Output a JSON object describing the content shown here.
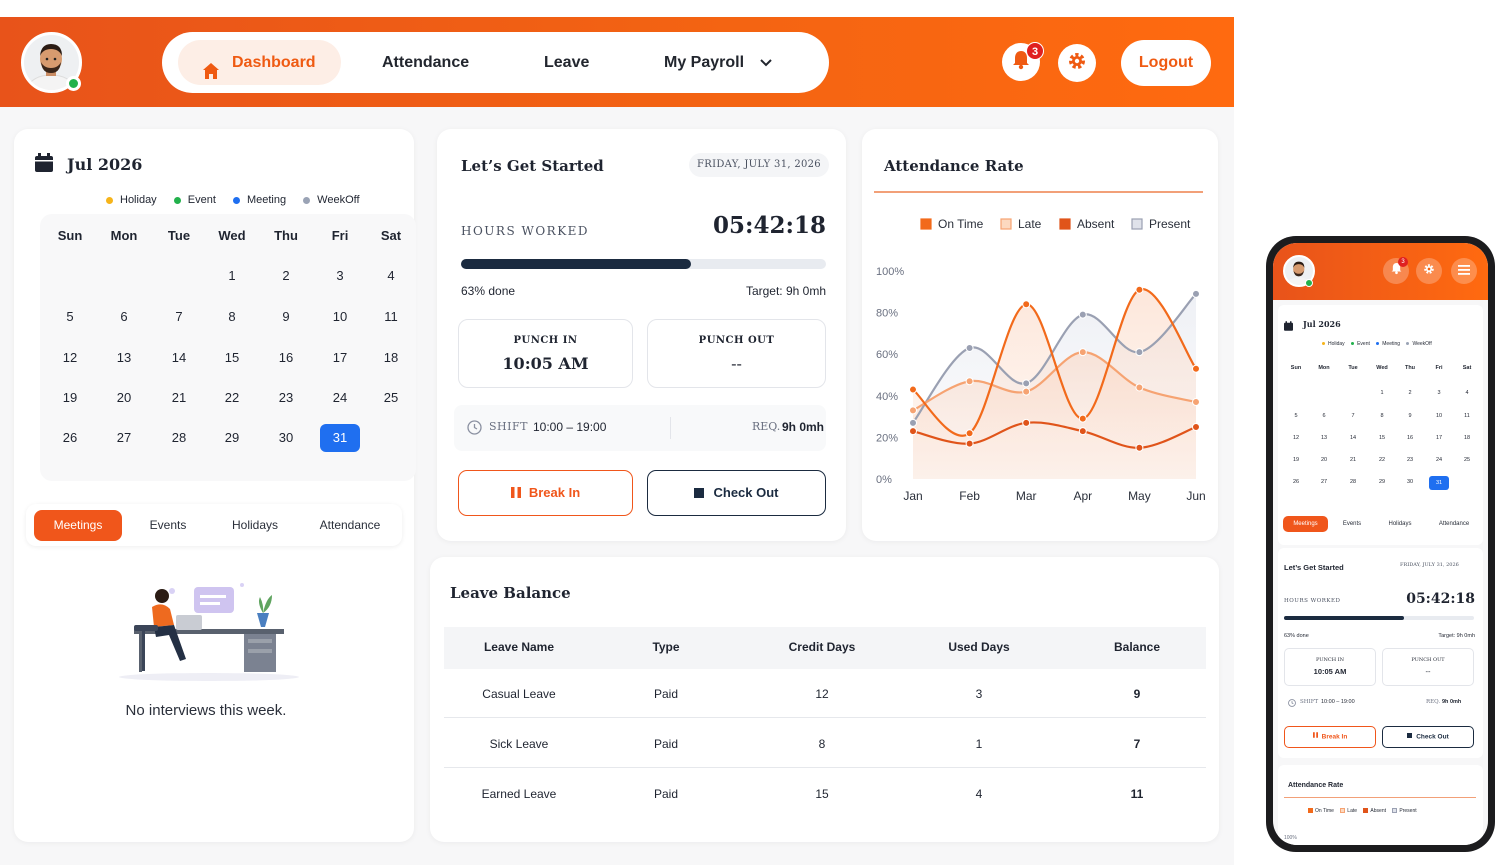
{
  "header": {
    "nav": {
      "dashboard": "Dashboard",
      "attendance": "Attendance",
      "leave": "Leave",
      "payroll": "My Payroll"
    },
    "notification_count": "3",
    "logout": "Logout"
  },
  "calendar": {
    "title": "Jul 2026",
    "legend": [
      "Holiday",
      "Event",
      "Meeting",
      "WeekOff"
    ],
    "legend_colors": [
      "#f6b41a",
      "#22b14c",
      "#1f6ff0",
      "#8a94a6"
    ],
    "weekdays": [
      "Sun",
      "Mon",
      "Tue",
      "Wed",
      "Thu",
      "Fri",
      "Sat"
    ],
    "weeks": [
      [
        "",
        "",
        "",
        "1",
        "2",
        "3",
        "4"
      ],
      [
        "5",
        "6",
        "7",
        "8",
        "9",
        "10",
        "11"
      ],
      [
        "12",
        "13",
        "14",
        "15",
        "16",
        "17",
        "18"
      ],
      [
        "19",
        "20",
        "21",
        "22",
        "23",
        "24",
        "25"
      ],
      [
        "26",
        "27",
        "28",
        "29",
        "30",
        "31",
        ""
      ]
    ],
    "selected": "31"
  },
  "tabs": [
    "Meetings",
    "Events",
    "Holidays",
    "Attendance"
  ],
  "empty_message": "No interviews this week.",
  "get_started": {
    "title": "Let’s Get Started",
    "date": "FRIDAY, JULY 31, 2026",
    "hours_label": "HOURS WORKED",
    "hours_value": "05:42:18",
    "progress": 0.63,
    "progress_text": "63% done",
    "target_text": "Target: 9h 0mh",
    "punch_in_label": "PUNCH IN",
    "punch_in_value": "10:05 AM",
    "punch_out_label": "PUNCH OUT",
    "punch_out_value": "--",
    "shift_label": "SHIFT",
    "shift_value": "10:00 – 19:00",
    "req_label": "REQ.",
    "req_value": "9h 0mh",
    "break_in": "Break In",
    "check_out": "Check Out"
  },
  "attendance_rate": {
    "title": "Attendance Rate"
  },
  "chart_data": {
    "type": "line",
    "categories": [
      "Jan",
      "Feb",
      "Mar",
      "Apr",
      "May",
      "Jun"
    ],
    "ylim": [
      0,
      100
    ],
    "yticks": [
      "100%",
      "80%",
      "60%",
      "40%",
      "20%",
      "0%"
    ],
    "series": [
      {
        "name": "On Time",
        "color": "#f26a1b",
        "values": [
          43,
          22,
          84,
          29,
          91,
          53
        ]
      },
      {
        "name": "Late",
        "color": "#f6a372",
        "values": [
          33,
          47,
          42,
          61,
          44,
          37
        ]
      },
      {
        "name": "Absent",
        "color": "#e0541a",
        "values": [
          23,
          17,
          27,
          23,
          15,
          25
        ]
      },
      {
        "name": "Present",
        "color": "#9aa0b2",
        "values": [
          27,
          63,
          46,
          79,
          61,
          89
        ]
      }
    ]
  },
  "leave_balance": {
    "title": "Leave Balance",
    "columns": [
      "Leave Name",
      "Type",
      "Credit Days",
      "Used Days",
      "Balance"
    ],
    "rows": [
      [
        "Casual Leave",
        "Paid",
        "12",
        "3",
        "9"
      ],
      [
        "Sick Leave",
        "Paid",
        "8",
        "1",
        "7"
      ],
      [
        "Earned Leave",
        "Paid",
        "15",
        "4",
        "11"
      ]
    ]
  },
  "mobile": {
    "notification_count": "3",
    "calendar_title": "Jul 2026",
    "legend": [
      "Holiday",
      "Event",
      "Meeting",
      "WeekOff"
    ],
    "tabs": [
      "Meetings",
      "Events",
      "Holidays",
      "Attendance"
    ],
    "get_started_title": "Let’s Get Started",
    "date": "FRIDAY, JULY 31, 2026",
    "hours_label": "HOURS WORKED",
    "hours_value": "05:42:18",
    "progress_text": "63% done",
    "target_text": "Target: 9h 0mh",
    "punch_in_label": "PUNCH IN",
    "punch_in_value": "10:05 AM",
    "punch_out_label": "PUNCH OUT",
    "punch_out_value": "--",
    "shift_label": "SHIFT",
    "shift_value": "10:00 – 19:00",
    "req_label": "REQ.",
    "req_value": "9h 0mh",
    "break_in": "Break In",
    "check_out": "Check Out",
    "attendance_title": "Attendance Rate",
    "chart_legend": [
      "On Time",
      "Late",
      "Absent",
      "Present"
    ],
    "ytick_top": "100%"
  }
}
